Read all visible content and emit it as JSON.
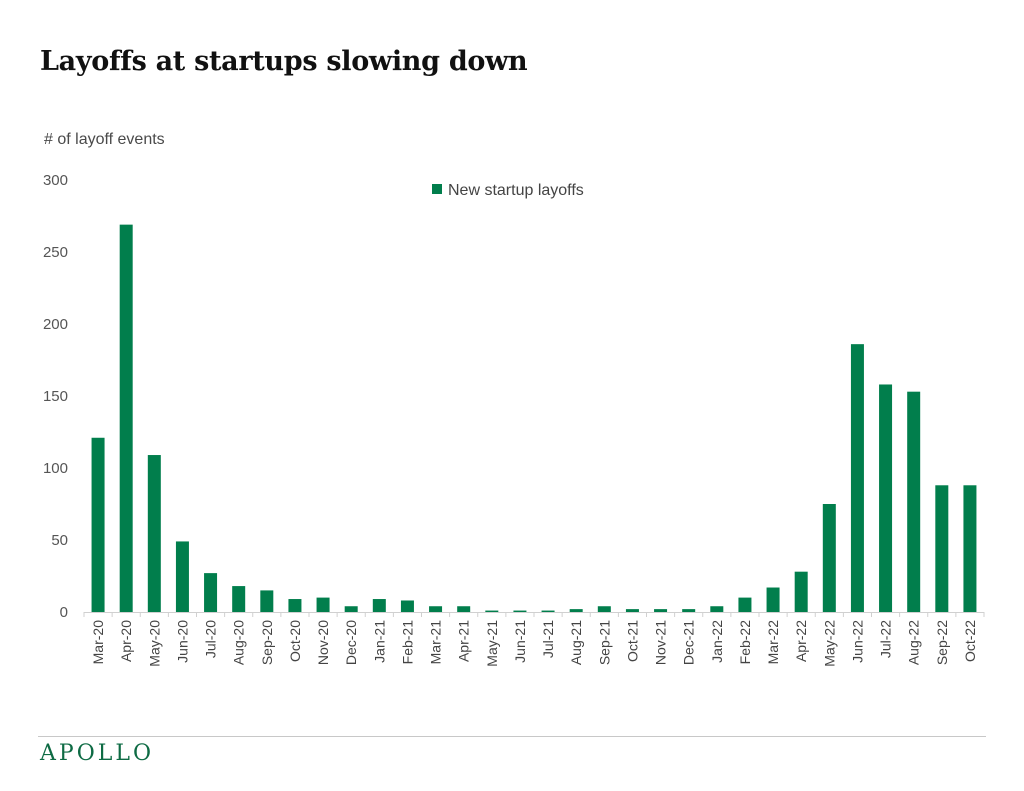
{
  "title": "Layoffs at startups slowing down",
  "brand": "APOLLO",
  "colors": {
    "bar": "#017E4C",
    "axis": "#d0d0d0",
    "brand": "#0e6b44"
  },
  "chart_data": {
    "type": "bar",
    "title": "Layoffs at startups slowing down",
    "ylabel": "# of layoff events",
    "xlabel": "",
    "ylim": [
      0,
      300
    ],
    "yticks": [
      0,
      50,
      100,
      150,
      200,
      250,
      300
    ],
    "grid": false,
    "legend_position": "top-center",
    "categories": [
      "Mar-20",
      "Apr-20",
      "May-20",
      "Jun-20",
      "Jul-20",
      "Aug-20",
      "Sep-20",
      "Oct-20",
      "Nov-20",
      "Dec-20",
      "Jan-21",
      "Feb-21",
      "Mar-21",
      "Apr-21",
      "May-21",
      "Jun-21",
      "Jul-21",
      "Aug-21",
      "Sep-21",
      "Oct-21",
      "Nov-21",
      "Dec-21",
      "Jan-22",
      "Feb-22",
      "Mar-22",
      "Apr-22",
      "May-22",
      "Jun-22",
      "Jul-22",
      "Aug-22",
      "Sep-22",
      "Oct-22"
    ],
    "series": [
      {
        "name": "New startup layoffs",
        "color": "#017E4C",
        "values": [
          121,
          269,
          109,
          49,
          27,
          18,
          15,
          9,
          10,
          4,
          9,
          8,
          4,
          4,
          1,
          1,
          1,
          2,
          4,
          2,
          2,
          2,
          4,
          10,
          17,
          28,
          75,
          186,
          158,
          153,
          88,
          88
        ]
      }
    ]
  }
}
